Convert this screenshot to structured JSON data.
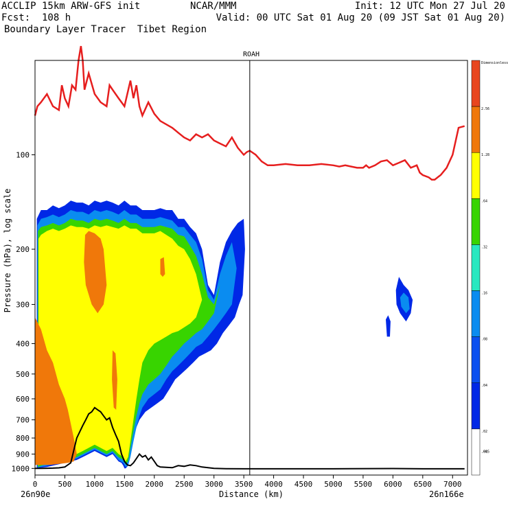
{
  "header": {
    "line1_left": "ACCLIP 15km ARW-GFS init",
    "line1_mid": "NCAR/MMM",
    "line1_right": "Init: 12 UTC Mon 27 Jul 20",
    "line2_left": "Fcst:  108 h",
    "line2_right": "Valid: 00 UTC Sat 01 Aug 20 (09 JST Sat 01 Aug 20)",
    "line3_left": "Boundary Layer Tracer  Tibet Region"
  },
  "colors": {
    "tropopause": "#e61e1e",
    "terrain": "#000000",
    "marker": "#000000"
  },
  "chart_data": {
    "type": "heatmap",
    "panel_title": "ROAH",
    "xlabel": "Distance (km)",
    "ylabel": "Pressure (hPa), log scale",
    "x_start_label": "26n90e",
    "x_end_label": "26n166e",
    "xlim": [
      0,
      7250
    ],
    "ylim": [
      1050,
      50
    ],
    "yscale": "log",
    "xticks": [
      0,
      500,
      1000,
      1500,
      2000,
      2500,
      3000,
      3500,
      4000,
      4500,
      5000,
      5500,
      6000,
      6500,
      7000
    ],
    "yticks": [
      100,
      200,
      300,
      400,
      500,
      600,
      700,
      800,
      900,
      1000
    ],
    "marker_x": 3600,
    "colorbar": {
      "levels": [
        "Dimensionless",
        "2.56",
        "1.28",
        ".64",
        ".32",
        ".16",
        ".08",
        ".04",
        ".02",
        ".01",
        ".005"
      ],
      "colors": [
        "#e8461e",
        "#f0780a",
        "#ffff00",
        "#38d400",
        "#28e8c0",
        "#0a8cf0",
        "#0a50f0",
        "#0028e6",
        "#ffffff"
      ]
    },
    "tropopause_line": {
      "x": [
        0,
        40,
        100,
        200,
        300,
        400,
        450,
        500,
        560,
        620,
        680,
        730,
        770,
        800,
        830,
        900,
        1000,
        1100,
        1200,
        1250,
        1300,
        1400,
        1500,
        1600,
        1650,
        1700,
        1750,
        1800,
        1900,
        2000,
        2100,
        2200,
        2300,
        2400,
        2500,
        2600,
        2700,
        2800,
        2900,
        3000,
        3100,
        3200,
        3300,
        3400,
        3500,
        3550,
        3600,
        3700,
        3800,
        3900,
        4000,
        4200,
        4400,
        4600,
        4800,
        5000,
        5100,
        5200,
        5300,
        5400,
        5500,
        5550,
        5600,
        5700,
        5800,
        5900,
        6000,
        6100,
        6200,
        6300,
        6400,
        6450,
        6500,
        6600,
        6650,
        6700,
        6750,
        6800,
        6900,
        7000,
        7100,
        7200
      ],
      "y": [
        75,
        70,
        68,
        64,
        70,
        72,
        60,
        66,
        70,
        60,
        62,
        50,
        45,
        50,
        62,
        55,
        64,
        68,
        70,
        60,
        62,
        66,
        70,
        58,
        66,
        60,
        70,
        75,
        68,
        74,
        78,
        80,
        82,
        85,
        88,
        90,
        86,
        88,
        86,
        90,
        92,
        94,
        88,
        95,
        100,
        98,
        97,
        100,
        105,
        108,
        108,
        107,
        108,
        108,
        107,
        108,
        109,
        108,
        109,
        110,
        110,
        108,
        110,
        108,
        105,
        104,
        108,
        106,
        104,
        110,
        108,
        114,
        116,
        118,
        120,
        120,
        118,
        116,
        110,
        100,
        82,
        81
      ]
    },
    "terrain_line": {
      "x": [
        0,
        100,
        200,
        300,
        400,
        500,
        600,
        700,
        800,
        850,
        900,
        950,
        1000,
        1050,
        1100,
        1150,
        1200,
        1250,
        1300,
        1350,
        1400,
        1450,
        1500,
        1550,
        1600,
        1650,
        1700,
        1750,
        1800,
        1850,
        1900,
        1950,
        2000,
        2050,
        2100,
        2200,
        2300,
        2400,
        2500,
        2600,
        2700,
        2800,
        2900,
        3000,
        3200,
        3500,
        4000,
        5000,
        6000,
        6500,
        7000,
        7200
      ],
      "y": [
        1000,
        1000,
        999,
        998,
        996,
        990,
        960,
        800,
        730,
        700,
        670,
        660,
        640,
        650,
        660,
        680,
        700,
        690,
        740,
        780,
        820,
        900,
        950,
        975,
        980,
        960,
        930,
        900,
        920,
        910,
        940,
        920,
        950,
        980,
        990,
        992,
        995,
        980,
        985,
        975,
        980,
        990,
        995,
        1000,
        1002,
        1003,
        1003,
        1003,
        1001,
        1003,
        1003,
        1003
      ]
    },
    "tracer_fields": [
      {
        "level": ".01",
        "color": "#0028e6",
        "region": "plume-outer",
        "x": [
          30,
          100,
          200,
          300,
          400,
          500,
          600,
          700,
          800,
          900,
          1000,
          1100,
          1200,
          1300,
          1400,
          1500,
          1600,
          1700,
          1800,
          1900,
          2000,
          2100,
          2200,
          2300,
          2400,
          2500,
          2600,
          2700,
          2800,
          2900,
          3000,
          3100,
          3200,
          3300,
          3400,
          3500,
          3520,
          3480,
          3420,
          3350,
          3250,
          3150,
          3050,
          2950,
          2850,
          2750,
          2650,
          2550,
          2450,
          2350,
          2250,
          2150,
          2050,
          1950,
          1850,
          1750,
          1700,
          1650,
          1600,
          1560,
          1520,
          1500,
          1480,
          1450,
          1400,
          1300,
          1200,
          1100,
          1000,
          900,
          800,
          700,
          600,
          500,
          400,
          300,
          200,
          100,
          30
        ],
        "y": [
          160,
          150,
          150,
          145,
          148,
          145,
          140,
          142,
          142,
          145,
          140,
          142,
          140,
          142,
          145,
          140,
          145,
          145,
          150,
          150,
          150,
          148,
          150,
          150,
          160,
          160,
          170,
          178,
          200,
          260,
          280,
          220,
          190,
          175,
          165,
          160,
          200,
          280,
          300,
          330,
          350,
          370,
          400,
          420,
          430,
          440,
          460,
          480,
          500,
          520,
          560,
          600,
          620,
          640,
          660,
          700,
          740,
          800,
          900,
          980,
          1000,
          1000,
          980,
          960,
          950,
          900,
          920,
          900,
          880,
          900,
          920,
          940,
          950,
          960,
          970,
          980,
          990,
          995,
          1000
        ]
      },
      {
        "level": ".04",
        "color": "#0a8cf0",
        "region": "plume",
        "x": [
          40,
          100,
          200,
          300,
          400,
          500,
          600,
          700,
          800,
          900,
          1000,
          1100,
          1200,
          1300,
          1400,
          1500,
          1600,
          1700,
          1800,
          1900,
          2000,
          2100,
          2200,
          2300,
          2400,
          2500,
          2600,
          2700,
          2800,
          2900,
          3000,
          3100,
          3200,
          3300,
          3380,
          3300,
          3200,
          3100,
          3000,
          2900,
          2800,
          2700,
          2600,
          2500,
          2400,
          2300,
          2200,
          2100,
          2000,
          1900,
          1800,
          1750,
          1700,
          1650,
          1600,
          1560,
          1520,
          1480,
          1400,
          1300,
          1200,
          1100,
          1000,
          900,
          800,
          700,
          600,
          500,
          400,
          300,
          200,
          100,
          40
        ],
        "y": [
          168,
          160,
          158,
          155,
          158,
          155,
          150,
          152,
          152,
          155,
          150,
          152,
          150,
          152,
          155,
          150,
          155,
          155,
          160,
          160,
          160,
          158,
          160,
          162,
          170,
          170,
          180,
          190,
          215,
          270,
          290,
          240,
          210,
          190,
          230,
          300,
          320,
          340,
          360,
          380,
          400,
          410,
          430,
          450,
          470,
          490,
          520,
          560,
          580,
          600,
          640,
          680,
          740,
          820,
          920,
          980,
          990,
          960,
          940,
          890,
          910,
          890,
          870,
          890,
          910,
          930,
          940,
          950,
          960,
          970,
          980,
          990,
          995
        ]
      },
      {
        "level": ".16",
        "color": "#38d400",
        "region": "plume",
        "x": [
          50,
          100,
          200,
          300,
          400,
          500,
          600,
          700,
          800,
          900,
          1000,
          1100,
          1200,
          1300,
          1400,
          1500,
          1600,
          1700,
          1800,
          1900,
          2000,
          2100,
          2200,
          2300,
          2400,
          2500,
          2600,
          2700,
          2800,
          2900,
          3000,
          3100,
          3000,
          2900,
          2800,
          2700,
          2600,
          2500,
          2400,
          2300,
          2200,
          2100,
          2000,
          1900,
          1800,
          1750,
          1700,
          1650,
          1600,
          1560,
          1520,
          1480,
          1400,
          1300,
          1200,
          1100,
          1000,
          900,
          800,
          700,
          600,
          500,
          400,
          300,
          200,
          100,
          50
        ],
        "y": [
          175,
          170,
          168,
          165,
          168,
          165,
          160,
          162,
          162,
          165,
          160,
          162,
          160,
          162,
          165,
          160,
          165,
          165,
          170,
          170,
          170,
          168,
          170,
          172,
          180,
          182,
          195,
          210,
          240,
          285,
          300,
          260,
          320,
          340,
          360,
          370,
          385,
          400,
          420,
          440,
          470,
          500,
          520,
          540,
          580,
          620,
          680,
          760,
          860,
          950,
          970,
          940,
          920,
          880,
          900,
          880,
          860,
          880,
          900,
          920,
          930,
          940,
          950,
          960,
          970,
          980,
          990
        ]
      },
      {
        "level": ".32",
        "color": "#ffff00",
        "region": "plume",
        "x": [
          60,
          100,
          200,
          300,
          400,
          500,
          600,
          700,
          800,
          900,
          1000,
          1100,
          1200,
          1300,
          1400,
          1500,
          1600,
          1700,
          1800,
          1900,
          2000,
          2100,
          2200,
          2300,
          2400,
          2500,
          2600,
          2700,
          2800,
          2700,
          2600,
          2500,
          2400,
          2300,
          2200,
          2100,
          2000,
          1900,
          1800,
          1750,
          1700,
          1650,
          1600,
          1560,
          1520,
          1480,
          1400,
          1300,
          1200,
          1100,
          1000,
          900,
          800,
          700,
          600,
          500,
          400,
          300,
          200,
          100,
          60
        ],
        "y": [
          185,
          180,
          175,
          172,
          175,
          172,
          168,
          170,
          170,
          172,
          168,
          170,
          168,
          170,
          172,
          168,
          172,
          172,
          178,
          178,
          178,
          175,
          180,
          185,
          195,
          200,
          215,
          240,
          290,
          330,
          345,
          355,
          365,
          370,
          380,
          390,
          400,
          420,
          460,
          520,
          600,
          700,
          820,
          920,
          950,
          920,
          900,
          860,
          880,
          860,
          840,
          860,
          880,
          900,
          910,
          920,
          930,
          940,
          950,
          960,
          980
        ]
      },
      {
        "level": ".64",
        "color": "#f0780a",
        "region": "lower-left",
        "x": [
          0,
          100,
          200,
          300,
          400,
          500,
          550,
          600,
          650,
          700,
          650,
          550,
          450,
          350,
          250,
          150,
          50,
          0
        ],
        "y": [
          330,
          360,
          420,
          460,
          540,
          600,
          650,
          720,
          800,
          900,
          950,
          960,
          965,
          970,
          975,
          975,
          975,
          975
        ]
      },
      {
        "level": ".64",
        "color": "#f0780a",
        "region": "upper-left",
        "x": [
          840,
          900,
          1000,
          1100,
          1150,
          1200,
          1150,
          1050,
          950,
          850,
          820,
          840
        ],
        "y": [
          180,
          175,
          178,
          185,
          200,
          260,
          300,
          320,
          300,
          260,
          220,
          180
        ]
      },
      {
        "level": ".64",
        "color": "#f0780a",
        "region": "mid-left",
        "x": [
          1300,
          1350,
          1380,
          1360,
          1320,
          1290,
          1300
        ],
        "y": [
          420,
          430,
          520,
          650,
          640,
          520,
          420
        ]
      },
      {
        "level": ".64",
        "color": "#f0780a",
        "region": "mid-right",
        "x": [
          2100,
          2160,
          2180,
          2140,
          2100,
          2100
        ],
        "y": [
          215,
          212,
          240,
          245,
          240,
          215
        ]
      },
      {
        "level": ".01",
        "color": "#0028e6",
        "region": "isolated-blob",
        "x": [
          5880,
          5920,
          5960,
          5950,
          5900,
          5880
        ],
        "y": [
          335,
          325,
          340,
          380,
          380,
          335
        ]
      },
      {
        "level": ".01",
        "color": "#0028e6",
        "region": "isolated-blob",
        "x": [
          6050,
          6100,
          6180,
          6260,
          6330,
          6300,
          6220,
          6120,
          6060,
          6050
        ],
        "y": [
          270,
          245,
          260,
          270,
          290,
          320,
          340,
          320,
          300,
          270
        ]
      },
      {
        "level": ".04",
        "color": "#0a8cf0",
        "region": "isolated-blob",
        "x": [
          6120,
          6180,
          6260,
          6280,
          6220,
          6140,
          6120
        ],
        "y": [
          285,
          275,
          285,
          310,
          320,
          305,
          285
        ]
      }
    ]
  }
}
